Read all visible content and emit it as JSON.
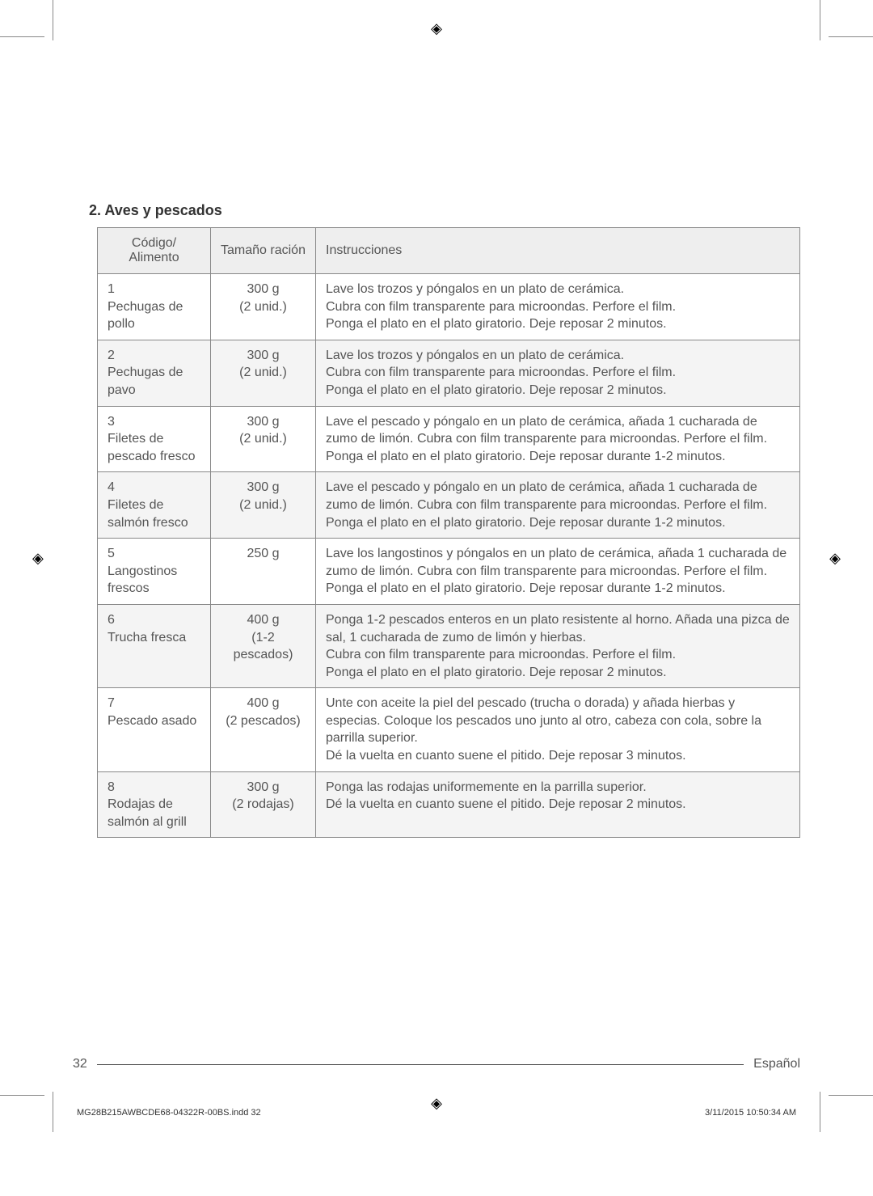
{
  "section": {
    "number": "2.",
    "title": "Aves y pescados"
  },
  "table": {
    "headers": {
      "codigo": "Código/ Alimento",
      "tamano": "Tamaño ración",
      "instrucciones": "Instrucciones"
    },
    "rows": [
      {
        "codigo": "1\nPechugas de pollo",
        "tamano": "300 g\n(2 unid.)",
        "instrucciones": "Lave los trozos y póngalos en un plato de cerámica.\nCubra con film transparente para microondas. Perfore el film.\nPonga el plato en el plato giratorio. Deje reposar 2 minutos.",
        "shaded": false
      },
      {
        "codigo": "2\nPechugas de pavo",
        "tamano": "300 g\n(2 unid.)",
        "instrucciones": "Lave los trozos y póngalos en un plato de cerámica.\nCubra con film transparente para microondas. Perfore el film.\nPonga el plato en el plato giratorio. Deje reposar 2 minutos.",
        "shaded": true
      },
      {
        "codigo": "3\nFiletes de pescado fresco",
        "tamano": "300 g\n(2 unid.)",
        "instrucciones": "Lave el pescado y póngalo en un plato de cerámica, añada 1 cucharada de zumo de limón. Cubra con film transparente para microondas. Perfore el film.\nPonga el plato en el plato giratorio. Deje reposar durante 1-2 minutos.",
        "shaded": false
      },
      {
        "codigo": "4\nFiletes de salmón fresco",
        "tamano": "300 g\n(2 unid.)",
        "instrucciones": "Lave el pescado y póngalo en un plato de cerámica, añada 1 cucharada de zumo de limón. Cubra con film transparente para microondas. Perfore el film.\nPonga el plato en el plato giratorio. Deje reposar durante 1-2 minutos.",
        "shaded": true
      },
      {
        "codigo": "5\nLangostinos frescos",
        "tamano": "250 g",
        "instrucciones": "Lave los langostinos y póngalos en un plato de cerámica, añada 1 cucharada de zumo de limón. Cubra con film transparente para microondas. Perfore el film.\nPonga el plato en el plato giratorio. Deje reposar durante 1-2 minutos.",
        "shaded": false
      },
      {
        "codigo": "6\nTrucha fresca",
        "tamano": "400 g\n(1-2 pescados)",
        "instrucciones": "Ponga 1-2 pescados enteros en un plato resistente al horno. Añada una pizca de sal, 1 cucharada de zumo de limón y hierbas.\nCubra con film transparente para microondas. Perfore el film.\nPonga el plato en el plato giratorio. Deje reposar 2 minutos.",
        "shaded": true
      },
      {
        "codigo": "7\nPescado asado",
        "tamano": "400 g\n(2 pescados)",
        "instrucciones": "Unte con aceite la piel del pescado (trucha o dorada) y añada hierbas y especias. Coloque los pescados uno junto al otro, cabeza con cola, sobre la parrilla superior.\nDé la vuelta en cuanto suene el pitido. Deje reposar 3 minutos.",
        "shaded": false
      },
      {
        "codigo": "8\nRodajas de salmón al grill",
        "tamano": "300 g\n(2 rodajas)",
        "instrucciones": "Ponga las rodajas uniformemente en la parrilla superior.\nDé la vuelta en cuanto suene el pitido. Deje reposar 2 minutos.",
        "shaded": true
      }
    ]
  },
  "footer": {
    "page": "32",
    "language": "Español"
  },
  "print": {
    "file": "MG28B215AWBCDE68-04322R-00BS.indd   32",
    "timestamp": "3/11/2015   10:50:34 AM"
  },
  "colors": {
    "page_bg": "#ffffff",
    "header_bg": "#eeeeee",
    "shade_bg": "#f4f4f4",
    "border": "#888888",
    "text": "#555555",
    "title_text": "#333333"
  },
  "typography": {
    "body_fontsize": 16,
    "title_fontsize": 18,
    "footer_fontsize": 16,
    "printinfo_fontsize": 11
  }
}
